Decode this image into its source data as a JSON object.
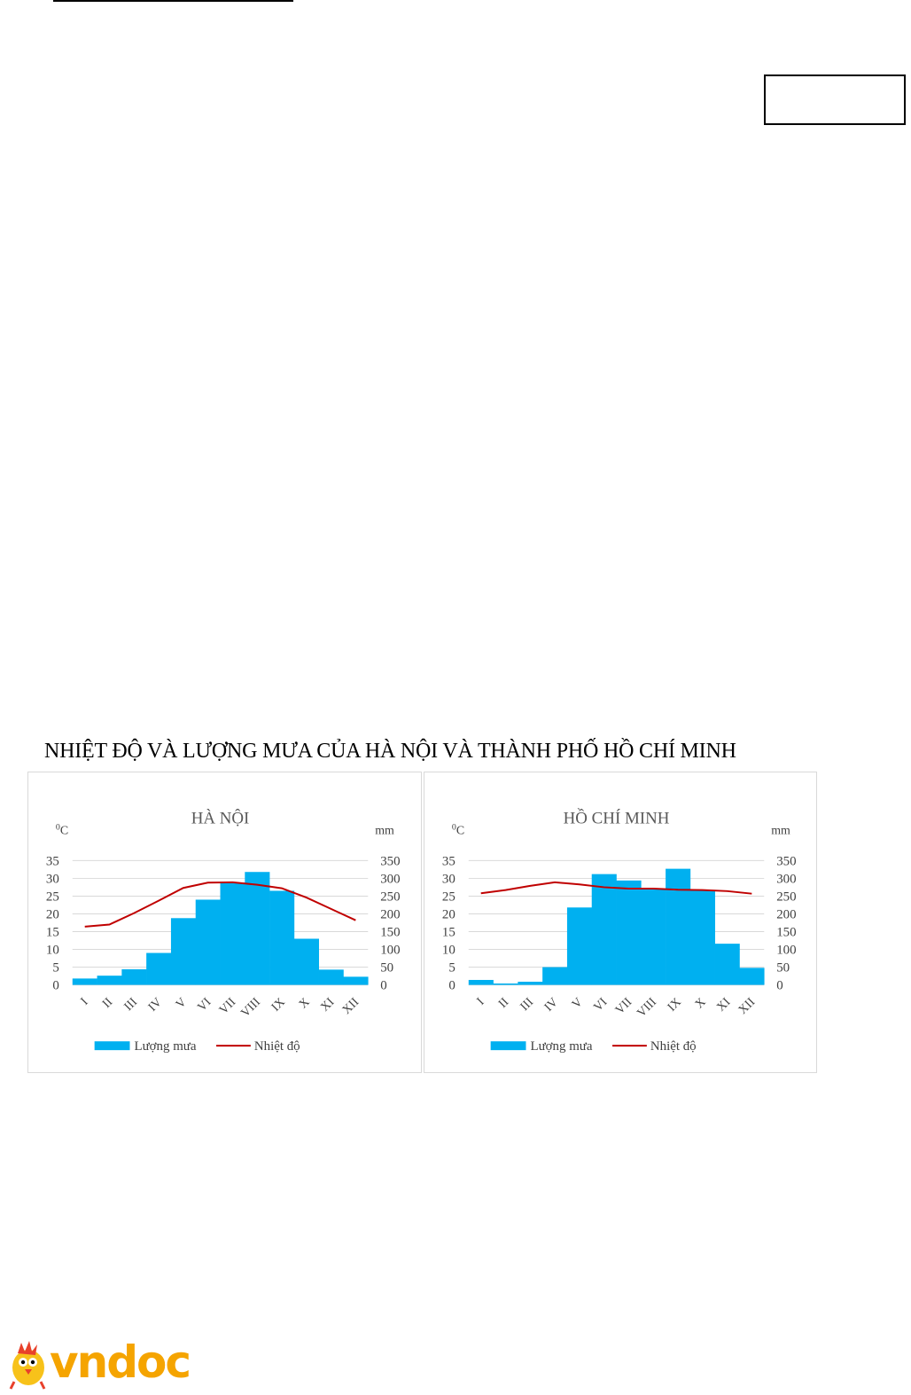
{
  "document": {
    "figure_title": "NHIỆT ĐỘ VÀ LƯỢNG MƯA CỦA HÀ NỘI VÀ THÀNH PHỐ HỒ CHÍ MINH",
    "logo_text": "vndoc"
  },
  "colors": {
    "bar": "#00b0f0",
    "line": "#c00000",
    "grid": "#d9d9d9",
    "text": "#404040"
  },
  "chart_data": [
    {
      "type": "bar",
      "title": "HÀ NỘI",
      "left_unit": "0C",
      "right_unit": "mm",
      "categories": [
        "I",
        "II",
        "III",
        "IV",
        "V",
        "VI",
        "VII",
        "VIII",
        "IX",
        "X",
        "XI",
        "XII"
      ],
      "left_ticks": [
        "0",
        "5",
        "10",
        "15",
        "20",
        "25",
        "30",
        "35"
      ],
      "right_ticks": [
        "0",
        "50",
        "100",
        "150",
        "200",
        "250",
        "300",
        "350"
      ],
      "ylim_left": [
        0,
        35
      ],
      "ylim_right": [
        0,
        350
      ],
      "grid": true,
      "legend_position": "bottom",
      "series": [
        {
          "name": "Lượng mưa",
          "kind": "bar",
          "axis": "right",
          "values": [
            18,
            26,
            44,
            90,
            188,
            240,
            288,
            318,
            265,
            130,
            43,
            23
          ]
        },
        {
          "name": "Nhiệt độ",
          "kind": "line",
          "axis": "left",
          "values": [
            16.4,
            17.0,
            20.2,
            23.7,
            27.3,
            28.8,
            28.9,
            28.2,
            27.2,
            24.6,
            21.4,
            18.2
          ]
        }
      ]
    },
    {
      "type": "bar",
      "title": "HỒ CHÍ MINH",
      "left_unit": "0C",
      "right_unit": "mm",
      "categories": [
        "I",
        "II",
        "III",
        "IV",
        "V",
        "VI",
        "VII",
        "VIII",
        "IX",
        "X",
        "XI",
        "XII"
      ],
      "left_ticks": [
        "0",
        "5",
        "10",
        "15",
        "20",
        "25",
        "30",
        "35"
      ],
      "right_ticks": [
        "0",
        "50",
        "100",
        "150",
        "200",
        "250",
        "300",
        "350"
      ],
      "ylim_left": [
        0,
        35
      ],
      "ylim_right": [
        0,
        350
      ],
      "grid": true,
      "legend_position": "bottom",
      "series": [
        {
          "name": "Lượng mưa",
          "kind": "bar",
          "axis": "right",
          "values": [
            14,
            4,
            9,
            50,
            218,
            312,
            294,
            270,
            327,
            267,
            116,
            48
          ]
        },
        {
          "name": "Nhiệt độ",
          "kind": "line",
          "axis": "left",
          "values": [
            25.8,
            26.7,
            27.9,
            28.9,
            28.3,
            27.5,
            27.1,
            27.1,
            26.8,
            26.7,
            26.4,
            25.7
          ]
        }
      ]
    }
  ]
}
